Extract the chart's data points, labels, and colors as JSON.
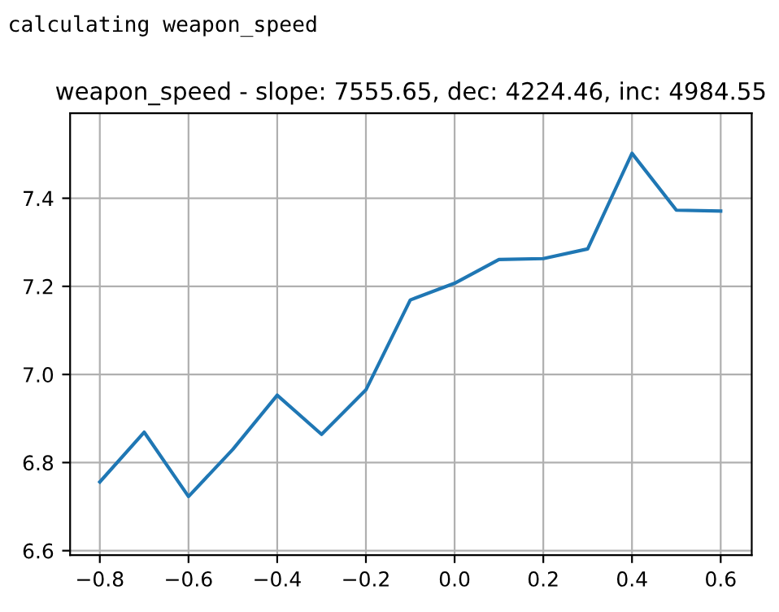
{
  "chart_data": {
    "type": "line",
    "title": "weapon_speed - slope: 7555.65, dec: 4224.46, inc: 4984.55",
    "annotations": [
      "calculating weapon_speed"
    ],
    "x": [
      -0.8,
      -0.7,
      -0.6,
      -0.5,
      -0.4,
      -0.3,
      -0.2,
      -0.1,
      0.0,
      0.1,
      0.2,
      0.3,
      0.4,
      0.5,
      0.6
    ],
    "series": [
      {
        "color": "#1f77b4",
        "values": [
          6.756,
          6.869,
          6.723,
          6.83,
          6.953,
          6.864,
          6.965,
          7.169,
          7.207,
          7.261,
          7.263,
          7.285,
          7.502,
          7.373,
          7.371
        ]
      }
    ],
    "xlim": [
      -0.867,
      0.67
    ],
    "ylim": [
      6.59,
      7.593
    ],
    "xticks": [
      {
        "value": -0.8,
        "label": "−0.8"
      },
      {
        "value": -0.6,
        "label": "−0.6"
      },
      {
        "value": -0.4,
        "label": "−0.4"
      },
      {
        "value": -0.2,
        "label": "−0.2"
      },
      {
        "value": 0.0,
        "label": "0.0"
      },
      {
        "value": 0.2,
        "label": "0.2"
      },
      {
        "value": 0.4,
        "label": "0.4"
      },
      {
        "value": 0.6,
        "label": "0.6"
      }
    ],
    "yticks": [
      {
        "value": 6.6,
        "label": "6.6"
      },
      {
        "value": 6.8,
        "label": "6.8"
      },
      {
        "value": 7.0,
        "label": "7.0"
      },
      {
        "value": 7.2,
        "label": "7.2"
      },
      {
        "value": 7.4,
        "label": "7.4"
      }
    ],
    "grid": true,
    "line_style": "solid"
  }
}
